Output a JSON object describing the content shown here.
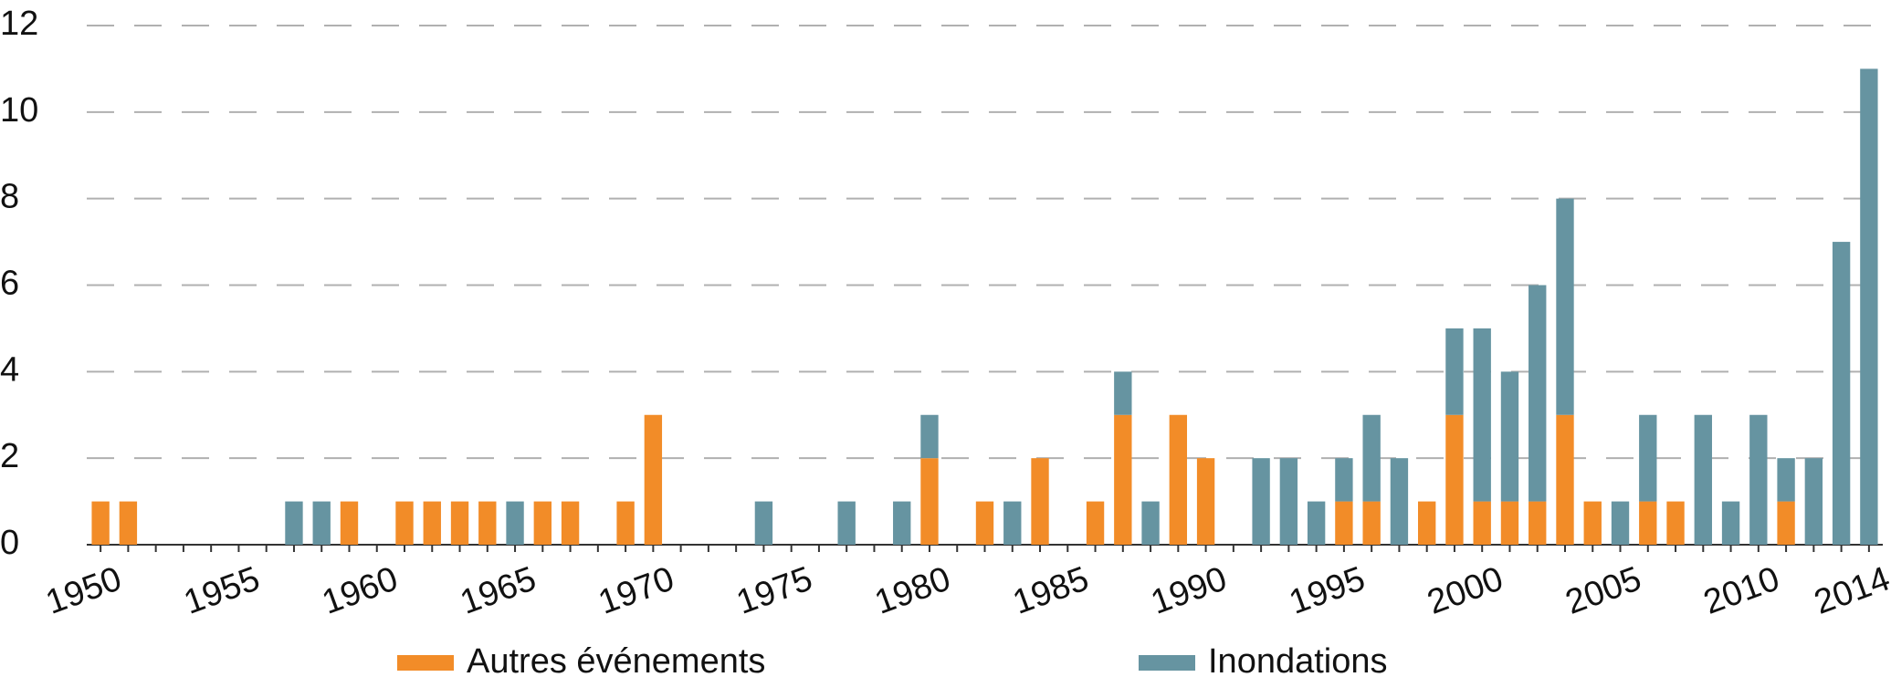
{
  "chart_data": {
    "type": "stacked-bar",
    "categories": [
      "1950",
      null,
      null,
      null,
      null,
      "1955",
      null,
      null,
      null,
      null,
      "1960",
      null,
      null,
      null,
      null,
      "1965",
      null,
      null,
      null,
      null,
      "1970",
      null,
      null,
      null,
      null,
      "1975",
      null,
      null,
      null,
      null,
      "1980",
      null,
      null,
      null,
      null,
      "1985",
      null,
      null,
      null,
      null,
      "1990",
      null,
      null,
      null,
      null,
      "1995",
      null,
      null,
      null,
      null,
      "2000",
      null,
      null,
      null,
      null,
      "2005",
      null,
      null,
      null,
      null,
      "2010",
      null,
      null,
      null,
      "2014"
    ],
    "series": [
      {
        "name": "Autres événements",
        "color": "#f28c28",
        "values": [
          1,
          1,
          0,
          0,
          0,
          0,
          0,
          0,
          0,
          1,
          0,
          1,
          1,
          1,
          1,
          0,
          1,
          1,
          0,
          1,
          3,
          0,
          0,
          0,
          0,
          0,
          0,
          0,
          0,
          0,
          2,
          0,
          1,
          0,
          2,
          0,
          1,
          3,
          0,
          3,
          2,
          0,
          0,
          0,
          0,
          1,
          1,
          0,
          1,
          3,
          1,
          1,
          1,
          3,
          1,
          0,
          1,
          1,
          0,
          0,
          0,
          1,
          0,
          0,
          0
        ]
      },
      {
        "name": "Inondations",
        "color": "#6694a1",
        "values": [
          0,
          0,
          0,
          0,
          0,
          0,
          0,
          1,
          1,
          0,
          0,
          0,
          0,
          0,
          0,
          1,
          0,
          0,
          0,
          0,
          0,
          0,
          0,
          0,
          1,
          0,
          0,
          1,
          0,
          1,
          1,
          0,
          0,
          1,
          0,
          0,
          0,
          1,
          1,
          0,
          0,
          0,
          2,
          2,
          1,
          1,
          2,
          2,
          0,
          2,
          4,
          3,
          5,
          5,
          0,
          1,
          2,
          0,
          3,
          1,
          3,
          1,
          2,
          7,
          11
        ]
      }
    ],
    "ylim": [
      0,
      12
    ],
    "yticks": [
      0,
      2,
      4,
      6,
      8,
      10,
      12
    ],
    "grid": true,
    "legend": "bottom"
  }
}
